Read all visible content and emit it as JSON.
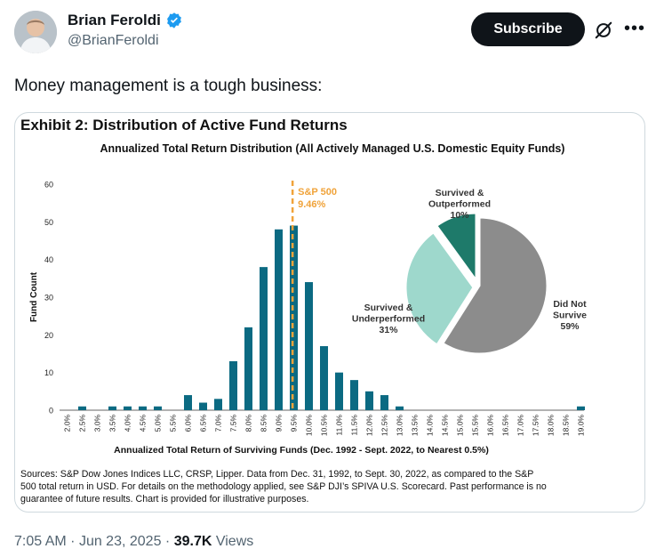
{
  "author": {
    "name": "Brian Feroldi",
    "handle": "@BrianFeroldi",
    "verified": true
  },
  "actions": {
    "subscribe_label": "Subscribe",
    "grok_icon": "grok-icon",
    "more_label": "•••"
  },
  "tweet": {
    "text": "Money management is a tough business:"
  },
  "exhibit": {
    "heading": "Exhibit 2: Distribution of Active Fund Returns",
    "sources": [
      "Sources: S&P Dow Jones Indices LLC, CRSP, Lipper. Data from Dec. 31, 1992, to Sept. 30, 2022, as compared to the S&P",
      "500 total return in USD. For details on the methodology applied, see S&P DJI’s SPIVA U.S. Scorecard. Past performance is no",
      "guarantee of future results. Chart is provided for illustrative purposes."
    ]
  },
  "chart_data": [
    {
      "type": "bar",
      "title": "Annualized Total Return Distribution (All Actively Managed U.S. Domestic Equity Funds)",
      "xlabel": "Annualized Total Return of Surviving Funds (Dec. 1992 - Sept. 2022, to Nearest 0.5%)",
      "ylabel": "Fund Count",
      "ylim": [
        0,
        60
      ],
      "yticks": [
        0,
        10,
        20,
        30,
        40,
        50,
        60
      ],
      "categories": [
        "2.0%",
        "2.5%",
        "3.0%",
        "3.5%",
        "4.0%",
        "4.5%",
        "5.0%",
        "5.5%",
        "6.0%",
        "6.5%",
        "7.0%",
        "7.5%",
        "8.0%",
        "8.5%",
        "9.0%",
        "9.5%",
        "10.0%",
        "10.5%",
        "11.0%",
        "11.5%",
        "12.0%",
        "12.5%",
        "13.0%",
        "13.5%",
        "14.0%",
        "14.5%",
        "15.0%",
        "15.5%",
        "16.0%",
        "16.5%",
        "17.0%",
        "17.5%",
        "18.0%",
        "18.5%",
        "19.0%"
      ],
      "values": [
        0,
        1,
        0,
        1,
        1,
        1,
        1,
        0,
        4,
        2,
        3,
        13,
        22,
        38,
        48,
        49,
        34,
        17,
        10,
        8,
        5,
        4,
        1,
        0,
        0,
        0,
        0,
        0,
        0,
        0,
        0,
        0,
        0,
        0,
        1
      ],
      "bar_color": "#0b6a82",
      "reference_line": {
        "label": "S&P 500",
        "value_label": "9.46%",
        "x": 9.46,
        "color": "#f0a33a"
      },
      "grid": false
    },
    {
      "type": "pie",
      "slices": [
        {
          "label": "Did Not Survive",
          "label_lines": [
            "Did Not",
            "Survive",
            "59%"
          ],
          "value": 59,
          "color": "#8c8c8c"
        },
        {
          "label": "Survived & Underperformed",
          "label_lines": [
            "Survived &",
            "Underperformed",
            "31%"
          ],
          "value": 31,
          "color": "#9ed8cc"
        },
        {
          "label": "Survived & Outperformed",
          "label_lines": [
            "Survived &",
            "Outperformed",
            "10%"
          ],
          "value": 10,
          "color": "#1e7a6a"
        }
      ]
    }
  ],
  "meta": {
    "time": "7:05 AM",
    "separator": "·",
    "date": "Jun 23, 2025",
    "views_count": "39.7K",
    "views_label": "Views"
  }
}
